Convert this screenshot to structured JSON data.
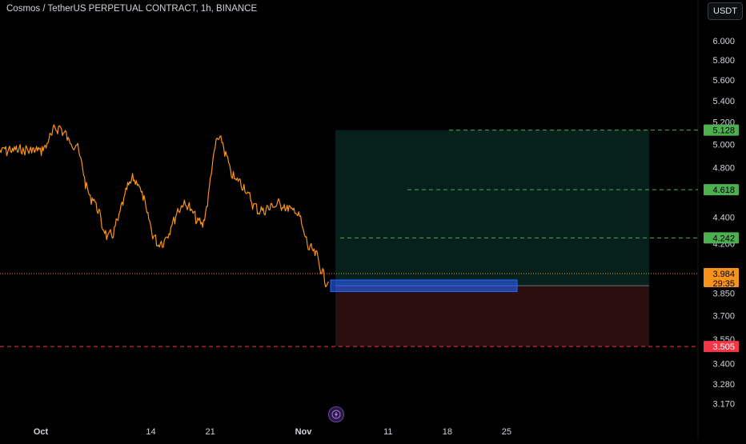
{
  "header": {
    "title": "Cosmos / TetherUS PERPETUAL CONTRACT, 1h, BINANCE",
    "currency_button": "USDT"
  },
  "colors": {
    "background": "#000000",
    "price_line": "#f7931a",
    "target": "#4caf50",
    "stop": "#f23645",
    "current_price": "#f7931a",
    "entry_zone": "#2962ff",
    "profit_zone": "#06201b",
    "loss_zone": "#2a0f0e"
  },
  "icons": {
    "bottom_center": "lightning-bolt-icon"
  },
  "chart_data": {
    "type": "line",
    "symbol": "Cosmos / TetherUS PERPETUAL CONTRACT",
    "interval": "1h",
    "exchange": "BINANCE",
    "y_tick_labels": [
      "6.000",
      "5.800",
      "5.600",
      "5.400",
      "5.200",
      "5.000",
      "4.800",
      "4.600",
      "4.400",
      "4.200",
      "4.000",
      "3.850",
      "3.700",
      "3.550",
      "3.400",
      "3.280",
      "3.170"
    ],
    "x_tick_labels": [
      "Oct",
      "14",
      "21",
      "Nov",
      "11",
      "18",
      "25"
    ],
    "ylim": [
      3.12,
      6.1
    ],
    "y_scale": "log",
    "grid": false,
    "series": [
      {
        "x": [
          "Oct 1",
          "Oct 3",
          "Oct 5",
          "Oct 7",
          "Oct 9",
          "Oct 12",
          "Oct 15",
          "Oct 18",
          "Oct 20",
          "Oct 22",
          "Oct 24",
          "Oct 27",
          "Oct 29",
          "Oct 31",
          "Nov 2",
          "Nov 4"
        ],
        "values": [
          4.95,
          5.15,
          5.0,
          4.55,
          4.25,
          4.7,
          4.2,
          4.5,
          4.35,
          5.05,
          4.7,
          4.45,
          4.5,
          4.45,
          4.15,
          3.92
        ]
      }
    ],
    "annotations": [
      {
        "label": "5.128",
        "value": 5.128,
        "kind": "target"
      },
      {
        "label": "4.618",
        "value": 4.618,
        "kind": "target"
      },
      {
        "label": "4.242",
        "value": 4.242,
        "kind": "target"
      },
      {
        "label": "3.984",
        "value": 3.984,
        "kind": "current_price",
        "countdown": "29:35"
      },
      {
        "label": "3.505",
        "value": 3.505,
        "kind": "stop"
      }
    ],
    "position_tool": {
      "entry": 3.9,
      "target": 5.128,
      "stop": 3.505,
      "entry_zone": [
        3.86,
        3.94
      ]
    }
  }
}
